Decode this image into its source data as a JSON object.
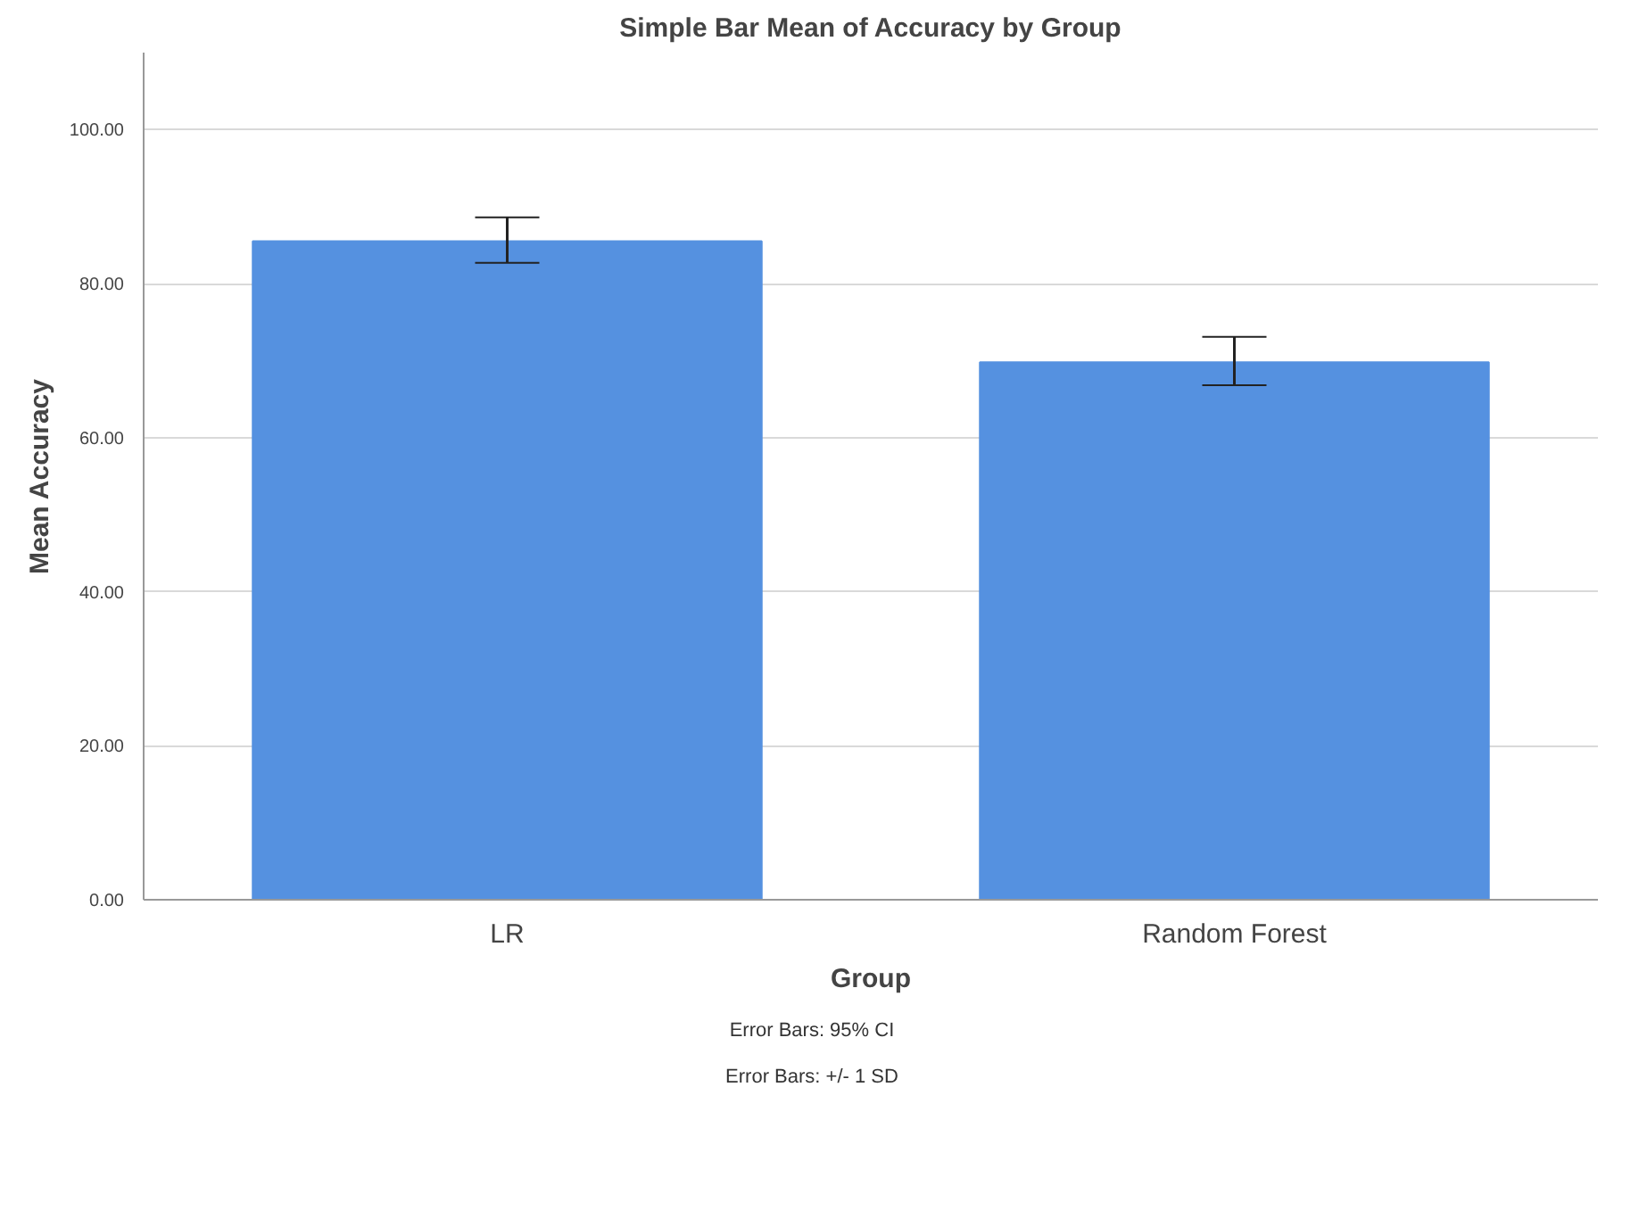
{
  "chart_data": {
    "type": "bar",
    "title": "Simple Bar Mean of Accuracy by Group",
    "xlabel": "Group",
    "ylabel": "Mean Accuracy",
    "categories": [
      "LR",
      "Random Forest"
    ],
    "values": [
      85.5,
      69.8
    ],
    "errors": [
      [
        82.7,
        88.6
      ],
      [
        66.8,
        73.1
      ]
    ],
    "color": "#5591e0",
    "ylim": [
      0,
      110
    ],
    "yticks": [
      {
        "value": 0,
        "label": "0.00"
      },
      {
        "value": 20,
        "label": "20.00"
      },
      {
        "value": 40,
        "label": "40.00"
      },
      {
        "value": 60,
        "label": "60.00"
      },
      {
        "value": 80,
        "label": "80.00"
      },
      {
        "value": 100,
        "label": "100.00"
      }
    ],
    "grid": "y",
    "annotations": [
      "Error Bars: 95% CI",
      "Error Bars: +/- 1 SD"
    ]
  }
}
